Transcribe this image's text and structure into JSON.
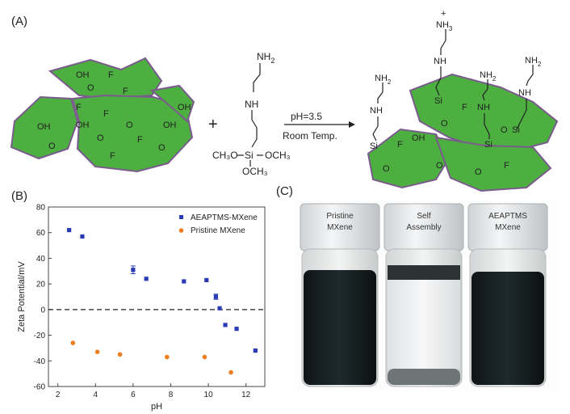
{
  "panels": {
    "a": "(A)",
    "b": "(B)",
    "c": "(C)"
  },
  "scheme": {
    "groups": {
      "oh": "OH",
      "f": "F",
      "o": "O",
      "si": "Si",
      "nh": "NH",
      "nh2": "NH",
      "h2sub": "2",
      "h3sub": "3",
      "plus": "+"
    },
    "silane": {
      "methoxy_left": "CH₃O",
      "methoxy_right": "OCH₃",
      "methoxy_bottom": "OCH₃",
      "si": "Si"
    },
    "plus_sign": "+",
    "conditions": {
      "ph": "pH=3.5",
      "temp": "Room Temp."
    },
    "colors": {
      "mxene_fill": "#4caf3f",
      "mxene_edge": "#7b5a8e"
    }
  },
  "photo": {
    "vials": [
      {
        "label_line1": "Pristine",
        "label_line2": "MXene"
      },
      {
        "label_line1": "Self",
        "label_line2": "Assembly"
      },
      {
        "label_line1": "AEAPTMS",
        "label_line2": "MXene"
      }
    ]
  },
  "chart_data": {
    "type": "scatter",
    "xlabel": "pH",
    "ylabel": "Zeta Potential/mV",
    "xlim": [
      1.5,
      13
    ],
    "ylim": [
      -60,
      80
    ],
    "xticks": [
      2,
      4,
      6,
      8,
      10,
      12
    ],
    "yticks": [
      -60,
      -40,
      -20,
      0,
      20,
      40,
      60,
      80
    ],
    "zero_line": "dashed",
    "legend_position": "top-right",
    "series": [
      {
        "name": "AEAPTMS-MXene",
        "color": "#2b3bb5",
        "x": [
          2.6,
          3.3,
          6.0,
          6.7,
          8.7,
          9.9,
          10.4,
          10.6,
          10.9,
          11.5,
          12.5
        ],
        "y": [
          62,
          57,
          31,
          24,
          22,
          23,
          10,
          1,
          -12,
          -15,
          -32
        ],
        "err": [
          0,
          0,
          3,
          0,
          0,
          0,
          2,
          0,
          0,
          0,
          0
        ]
      },
      {
        "name": "Pristine MXene",
        "color": "#ee7d1f",
        "x": [
          2.8,
          4.1,
          5.3,
          7.8,
          9.8,
          11.2
        ],
        "y": [
          -26,
          -33,
          -35,
          -37,
          -37,
          -49
        ]
      }
    ]
  }
}
